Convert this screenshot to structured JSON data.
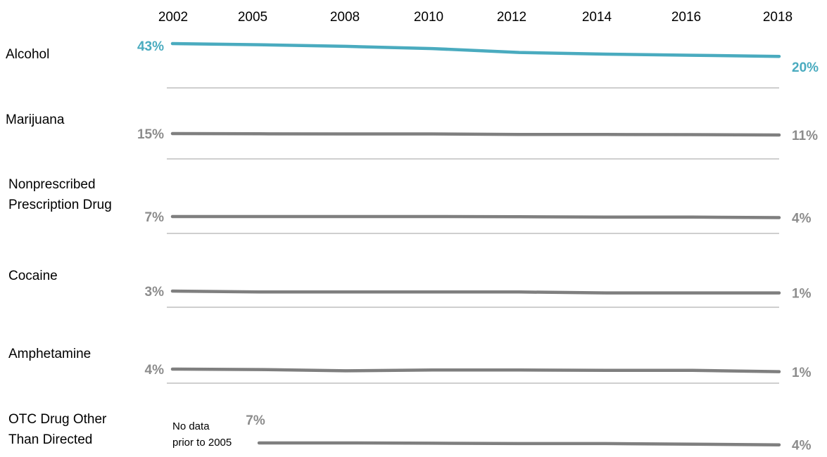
{
  "colors": {
    "highlight": "#4aabbf",
    "series": "#7f7f7f",
    "divider": "#bfbfbf",
    "label_gray": "#8c8c8c"
  },
  "chart_data": {
    "type": "line",
    "x": [
      "2002",
      "2005",
      "2008",
      "2010",
      "2012",
      "2014",
      "2016",
      "2018"
    ],
    "series": [
      {
        "name": "Alcohol",
        "values": [
          43,
          41,
          38,
          34,
          27,
          24,
          22,
          20
        ],
        "start_label": "43%",
        "end_label": "20%",
        "color": "#4aabbf",
        "label_lines": [
          "Alcohol"
        ]
      },
      {
        "name": "Marijuana",
        "values": [
          15,
          14.5,
          14,
          14,
          12.5,
          12.5,
          12,
          11
        ],
        "start_label": "15%",
        "end_label": "11%",
        "color": "#7f7f7f",
        "label_lines": [
          "Marijuana"
        ]
      },
      {
        "name": "Nonprescribed Prescription Drug",
        "values": [
          7,
          7,
          7,
          7,
          6.5,
          5.5,
          5.5,
          4
        ],
        "start_label": "7%",
        "end_label": "4%",
        "color": "#7f7f7f",
        "label_lines": [
          "Nonprescribed",
          "Prescription Drug"
        ]
      },
      {
        "name": "Cocaine",
        "values": [
          3,
          2,
          2,
          2,
          2,
          1,
          1,
          1
        ],
        "start_label": "3%",
        "end_label": "1%",
        "color": "#7f7f7f",
        "label_lines": [
          "Cocaine"
        ]
      },
      {
        "name": "Amphetamine",
        "values": [
          4,
          3.5,
          2,
          3,
          3,
          2.5,
          2.5,
          1
        ],
        "start_label": "4%",
        "end_label": "1%",
        "color": "#7f7f7f",
        "label_lines": [
          "Amphetamine"
        ]
      },
      {
        "name": "OTC Drug Other Than Directed",
        "values": [
          null,
          7,
          7,
          6.5,
          6,
          6,
          5,
          4
        ],
        "start_label": "7%",
        "end_label": "4%",
        "color": "#7f7f7f",
        "label_lines": [
          "OTC Drug Other",
          "Than Directed"
        ],
        "note_lines": [
          "No data",
          "prior to 2005"
        ]
      }
    ],
    "grid": false,
    "legend": "none"
  }
}
